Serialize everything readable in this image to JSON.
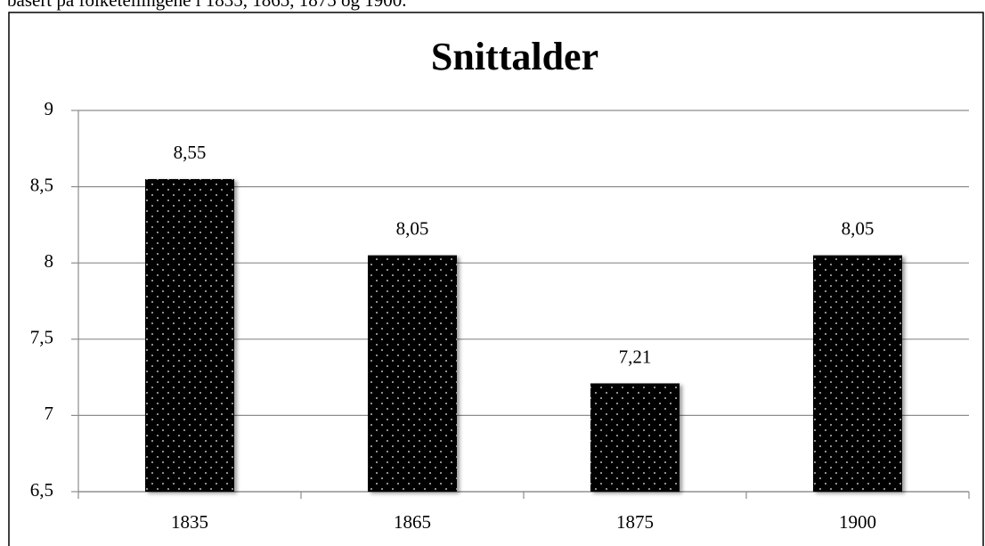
{
  "caption": "basert på folketellingene i 1835, 1865, 1875 og 1900.",
  "chart_data": {
    "type": "bar",
    "title": "Snittalder",
    "categories": [
      "1835",
      "1865",
      "1875",
      "1900"
    ],
    "values": [
      8.55,
      8.05,
      7.21,
      8.05
    ],
    "value_labels": [
      "8,55",
      "8,05",
      "7,21",
      "8,05"
    ],
    "color": "#000000",
    "ylim": [
      6.5,
      9
    ],
    "yticks": [
      {
        "value": 6.5,
        "label": "6,5"
      },
      7,
      {
        "value": 7.5,
        "label": "7,5"
      },
      8,
      {
        "value": 8.5,
        "label": "8,5"
      },
      9
    ],
    "grid": true
  }
}
